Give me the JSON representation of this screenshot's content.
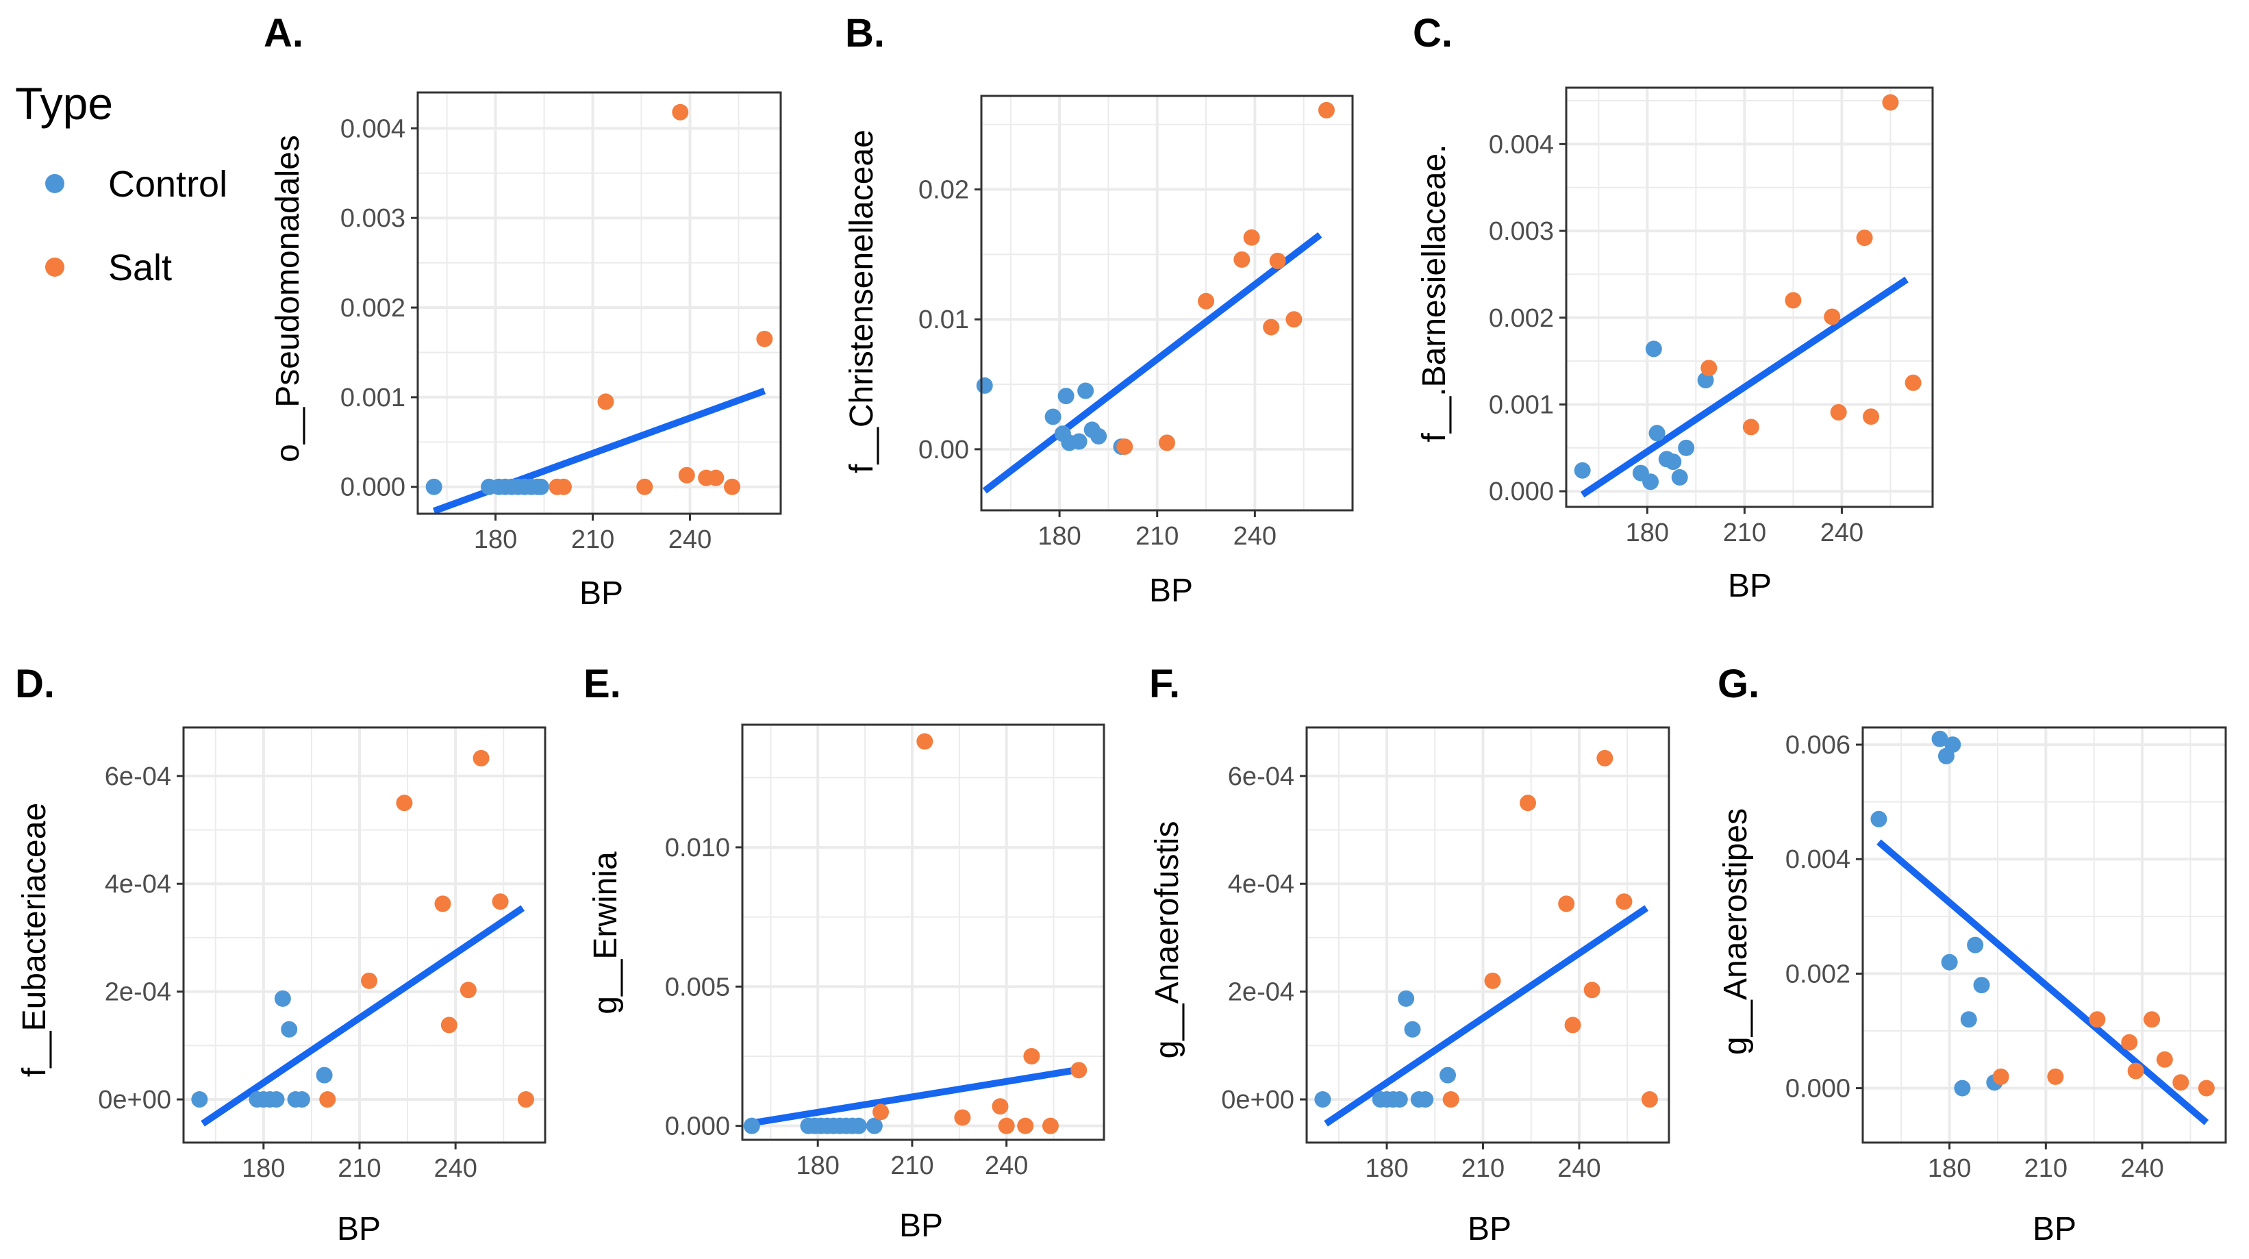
{
  "legend": {
    "title": "Type",
    "entries": [
      {
        "label": "Control",
        "color": "#4C96D7"
      },
      {
        "label": "Salt",
        "color": "#F47C3C"
      }
    ]
  },
  "colors": {
    "control": "#4C96D7",
    "salt": "#F47C3C",
    "fit": "#1666F0",
    "grid": "#ebebeb",
    "border": "#333333"
  },
  "chart_data": [
    {
      "id": "A",
      "letter": "A.",
      "type": "scatter",
      "xlabel": "BP",
      "ylabel": "o__Pseudomonadales",
      "xlim": [
        156,
        268
      ],
      "ylim": [
        -0.0003,
        0.0044
      ],
      "xticks": [
        180,
        210,
        240
      ],
      "xtick_labels": [
        "180",
        "210",
        "240"
      ],
      "yticks": [
        0,
        0.001,
        0.002,
        0.003,
        0.004
      ],
      "ytick_labels": [
        "0.000",
        "0.001",
        "0.002",
        "0.003",
        "0.004"
      ],
      "control": [
        [
          161,
          0
        ],
        [
          178,
          0
        ],
        [
          181,
          0
        ],
        [
          183,
          0
        ],
        [
          185,
          0
        ],
        [
          187,
          0
        ],
        [
          189,
          0
        ],
        [
          191,
          0
        ],
        [
          193,
          0
        ],
        [
          194,
          0
        ]
      ],
      "salt": [
        [
          199,
          0
        ],
        [
          201,
          0
        ],
        [
          214,
          0.00095
        ],
        [
          226,
          0
        ],
        [
          237,
          0.00418
        ],
        [
          239,
          0.00013
        ],
        [
          245,
          0.0001
        ],
        [
          248,
          0.0001
        ],
        [
          253,
          0
        ],
        [
          263,
          0.00165
        ]
      ],
      "fit": [
        [
          161,
          -0.00027
        ],
        [
          263,
          0.00107
        ]
      ]
    },
    {
      "id": "B",
      "letter": "B.",
      "type": "scatter",
      "xlabel": "BP",
      "ylabel": "f__Christensenellaceae",
      "xlim": [
        156,
        270
      ],
      "ylim": [
        -0.0047,
        0.0272
      ],
      "xticks": [
        180,
        210,
        240
      ],
      "xtick_labels": [
        "180",
        "210",
        "240"
      ],
      "yticks": [
        0,
        0.01,
        0.02
      ],
      "ytick_labels": [
        "0.00",
        "0.01",
        "0.02"
      ],
      "control": [
        [
          157,
          0.0049
        ],
        [
          178,
          0.0025
        ],
        [
          181,
          0.0012
        ],
        [
          182,
          0.0041
        ],
        [
          183,
          0.0005
        ],
        [
          186,
          0.0006
        ],
        [
          188,
          0.0045
        ],
        [
          190,
          0.0015
        ],
        [
          192,
          0.001
        ],
        [
          199,
          0.0002
        ]
      ],
      "salt": [
        [
          200,
          0.0002
        ],
        [
          213,
          0.0005
        ],
        [
          225,
          0.0114
        ],
        [
          236,
          0.0146
        ],
        [
          239,
          0.0163
        ],
        [
          245,
          0.0094
        ],
        [
          247,
          0.0145
        ],
        [
          252,
          0.01
        ],
        [
          262,
          0.0261
        ]
      ],
      "fit": [
        [
          157,
          -0.0032
        ],
        [
          260,
          0.0165
        ]
      ]
    },
    {
      "id": "C",
      "letter": "C.",
      "type": "scatter",
      "xlabel": "BP",
      "ylabel": "f__.Barnesiellaceae.",
      "xlim": [
        155,
        268
      ],
      "ylim": [
        -0.00018,
        0.00465
      ],
      "xticks": [
        180,
        210,
        240
      ],
      "xtick_labels": [
        "180",
        "210",
        "240"
      ],
      "yticks": [
        0,
        0.001,
        0.002,
        0.003,
        0.004
      ],
      "ytick_labels": [
        "0.000",
        "0.001",
        "0.002",
        "0.003",
        "0.004"
      ],
      "control": [
        [
          160,
          0.00024
        ],
        [
          178,
          0.00021
        ],
        [
          181,
          0.00011
        ],
        [
          182,
          0.00164
        ],
        [
          183,
          0.00067
        ],
        [
          186,
          0.00037
        ],
        [
          188,
          0.00034
        ],
        [
          190,
          0.00016
        ],
        [
          192,
          0.0005
        ],
        [
          198,
          0.00128
        ]
      ],
      "salt": [
        [
          199,
          0.00142
        ],
        [
          212,
          0.00074
        ],
        [
          225,
          0.0022
        ],
        [
          237,
          0.00201
        ],
        [
          239,
          0.00091
        ],
        [
          247,
          0.00292
        ],
        [
          249,
          0.00086
        ],
        [
          255,
          0.00448
        ],
        [
          262,
          0.00125
        ]
      ],
      "fit": [
        [
          160,
          -4e-05
        ],
        [
          260,
          0.00244
        ]
      ]
    },
    {
      "id": "D",
      "letter": "D.",
      "type": "scatter",
      "xlabel": "BP",
      "ylabel": "f__Eubacteriaceae",
      "xlim": [
        155,
        268
      ],
      "ylim": [
        -8e-05,
        0.00069
      ],
      "xticks": [
        180,
        210,
        240
      ],
      "xtick_labels": [
        "180",
        "210",
        "240"
      ],
      "yticks": [
        0,
        0.0002,
        0.0004,
        0.0006
      ],
      "ytick_labels": [
        "0e+00",
        "2e-04",
        "4e-04",
        "6e-04"
      ],
      "control": [
        [
          160,
          0
        ],
        [
          178,
          0
        ],
        [
          180,
          0
        ],
        [
          182,
          0
        ],
        [
          184,
          0
        ],
        [
          186,
          0.000187
        ],
        [
          188,
          0.00013
        ],
        [
          190,
          0
        ],
        [
          192,
          0
        ],
        [
          199,
          4.5e-05
        ]
      ],
      "salt": [
        [
          200,
          0
        ],
        [
          213,
          0.00022
        ],
        [
          224,
          0.00055
        ],
        [
          236,
          0.000363
        ],
        [
          238,
          0.000138
        ],
        [
          244,
          0.000203
        ],
        [
          248,
          0.000633
        ],
        [
          254,
          0.000367
        ],
        [
          262,
          0
        ]
      ],
      "fit": [
        [
          161,
          -4.5e-05
        ],
        [
          261,
          0.000355
        ]
      ]
    },
    {
      "id": "E",
      "letter": "E.",
      "type": "scatter",
      "xlabel": "BP",
      "ylabel": "g__Erwinia",
      "xlim": [
        156,
        271
      ],
      "ylim": [
        -0.0005,
        0.0144
      ],
      "xticks": [
        180,
        210,
        240
      ],
      "xtick_labels": [
        "180",
        "210",
        "240"
      ],
      "yticks": [
        0,
        0.005,
        0.01
      ],
      "ytick_labels": [
        "0.000",
        "0.005",
        "0.010"
      ],
      "control": [
        [
          159,
          0
        ],
        [
          177,
          0
        ],
        [
          179,
          0
        ],
        [
          181,
          0
        ],
        [
          183,
          0
        ],
        [
          185,
          0
        ],
        [
          187,
          0
        ],
        [
          189,
          0
        ],
        [
          191,
          0
        ],
        [
          193,
          0
        ],
        [
          198,
          0
        ]
      ],
      "salt": [
        [
          200,
          0.0005
        ],
        [
          214,
          0.0138
        ],
        [
          226,
          0.0003
        ],
        [
          238,
          0.0007
        ],
        [
          240,
          0
        ],
        [
          246,
          0
        ],
        [
          248,
          0.0025
        ],
        [
          254,
          0
        ],
        [
          263,
          0.002
        ]
      ],
      "fit": [
        [
          159,
          0.0001
        ],
        [
          262,
          0.002
        ]
      ]
    },
    {
      "id": "F",
      "letter": "F.",
      "type": "scatter",
      "xlabel": "BP",
      "ylabel": "g__Anaerofustis",
      "xlim": [
        155,
        268
      ],
      "ylim": [
        -8e-05,
        0.00069
      ],
      "xticks": [
        180,
        210,
        240
      ],
      "xtick_labels": [
        "180",
        "210",
        "240"
      ],
      "yticks": [
        0,
        0.0002,
        0.0004,
        0.0006
      ],
      "ytick_labels": [
        "0e+00",
        "2e-04",
        "4e-04",
        "6e-04"
      ],
      "control": [
        [
          160,
          0
        ],
        [
          178,
          0
        ],
        [
          180,
          0
        ],
        [
          182,
          0
        ],
        [
          184,
          0
        ],
        [
          186,
          0.000187
        ],
        [
          188,
          0.00013
        ],
        [
          190,
          0
        ],
        [
          192,
          0
        ],
        [
          199,
          4.5e-05
        ]
      ],
      "salt": [
        [
          200,
          0
        ],
        [
          213,
          0.00022
        ],
        [
          224,
          0.00055
        ],
        [
          236,
          0.000363
        ],
        [
          238,
          0.000138
        ],
        [
          244,
          0.000203
        ],
        [
          248,
          0.000633
        ],
        [
          254,
          0.000367
        ],
        [
          262,
          0
        ]
      ],
      "fit": [
        [
          161,
          -4.5e-05
        ],
        [
          261,
          0.000355
        ]
      ]
    },
    {
      "id": "G",
      "letter": "G.",
      "type": "scatter",
      "xlabel": "BP",
      "ylabel": "g__Anaerostipes",
      "xlim": [
        153,
        266
      ],
      "ylim": [
        -0.00095,
        0.0063
      ],
      "xticks": [
        180,
        210,
        240
      ],
      "xtick_labels": [
        "180",
        "210",
        "240"
      ],
      "yticks": [
        0,
        0.002,
        0.004,
        0.006
      ],
      "ytick_labels": [
        "0.000",
        "0.002",
        "0.004",
        "0.006"
      ],
      "control": [
        [
          158,
          0.0047
        ],
        [
          177,
          0.0061
        ],
        [
          179,
          0.0058
        ],
        [
          181,
          0.006
        ],
        [
          180,
          0.0022
        ],
        [
          184,
          0
        ],
        [
          186,
          0.0012
        ],
        [
          188,
          0.0025
        ],
        [
          190,
          0.0018
        ],
        [
          194,
          0.0001
        ]
      ],
      "salt": [
        [
          196,
          0.0002
        ],
        [
          213,
          0.0002
        ],
        [
          226,
          0.0012
        ],
        [
          236,
          0.0008
        ],
        [
          238,
          0.0003
        ],
        [
          243,
          0.0012
        ],
        [
          247,
          0.0005
        ],
        [
          252,
          0.0001
        ],
        [
          260,
          0
        ]
      ],
      "fit": [
        [
          158,
          0.0043
        ],
        [
          260,
          -0.0006
        ]
      ]
    }
  ]
}
